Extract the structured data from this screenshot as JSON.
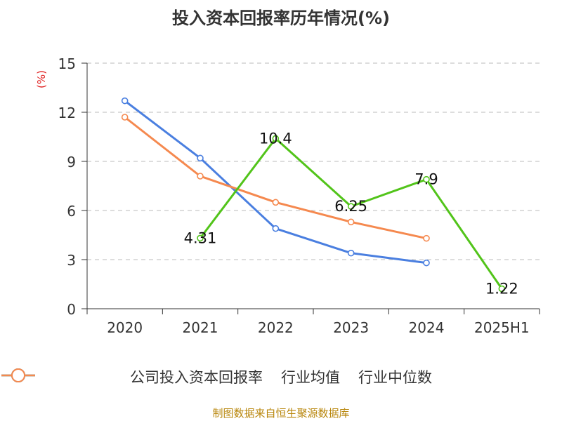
{
  "header": {
    "title": "投入资本回报率历年情况(%)",
    "unit": "(%)"
  },
  "footer": {
    "source": "制图数据来自恒生聚源数据库"
  },
  "chart_data": {
    "type": "line",
    "title": "投入资本回报率历年情况(%)",
    "ylabel": "(%)",
    "ylim": [
      0,
      15
    ],
    "yticks": [
      "0",
      "3",
      "6",
      "9",
      "12",
      "15"
    ],
    "categories": [
      "2020",
      "2021",
      "2022",
      "2023",
      "2024",
      "2025H1"
    ],
    "grid": true,
    "legend_position": "bottom",
    "series": [
      {
        "name": "公司投入资本回报率",
        "color": "#52c41a",
        "values": [
          null,
          4.31,
          10.4,
          6.25,
          7.9,
          1.22
        ],
        "labels": [
          null,
          "4.31",
          "10.4",
          "6.25",
          "7.9",
          "1.22"
        ]
      },
      {
        "name": "行业均值",
        "color": "#4a7fe0",
        "values": [
          12.7,
          9.2,
          4.9,
          3.4,
          2.8,
          null
        ]
      },
      {
        "name": "行业中位数",
        "color": "#f5894f",
        "values": [
          11.7,
          8.1,
          6.5,
          5.3,
          4.3,
          null
        ]
      }
    ]
  }
}
